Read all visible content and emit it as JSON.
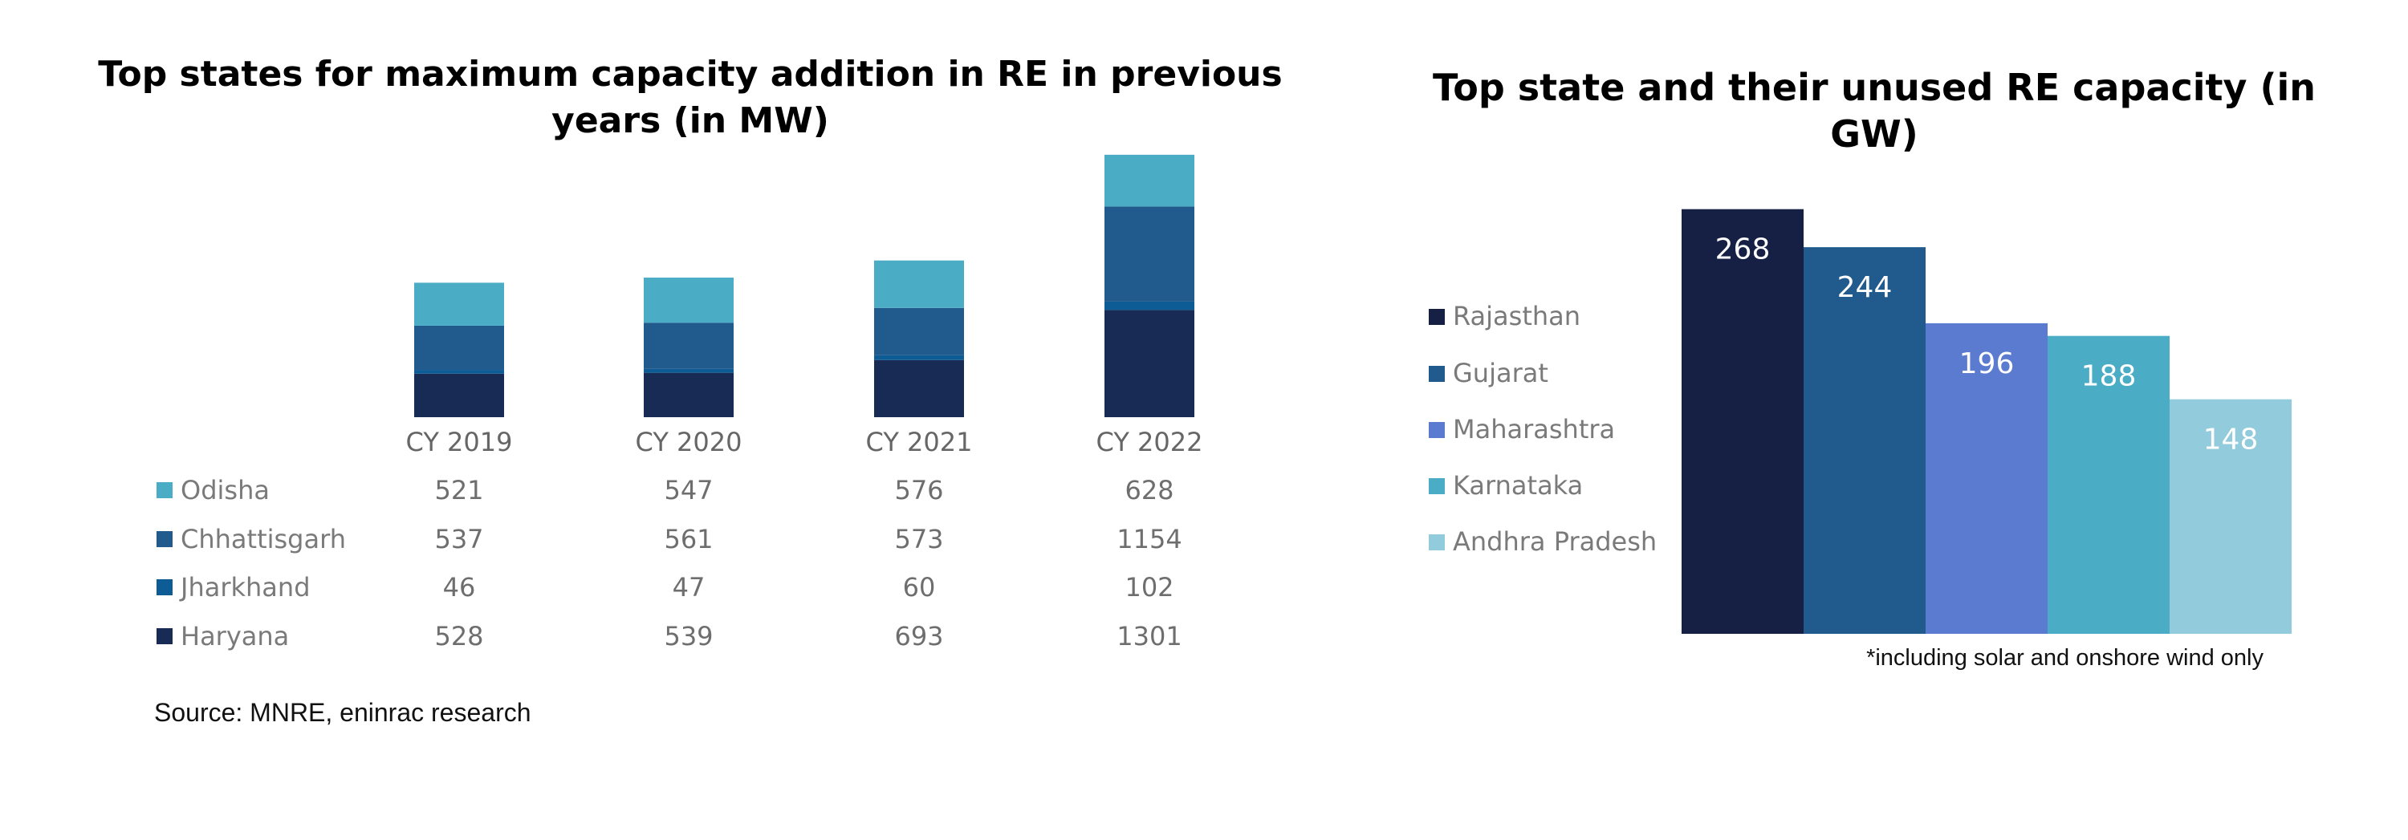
{
  "chart_data": [
    {
      "type": "bar",
      "stacked": true,
      "title": "Top states for maximum capacity addition in RE in previous years (in MW)",
      "categories": [
        "CY 2019",
        "CY 2020",
        "CY 2021",
        "CY 2022"
      ],
      "series": [
        {
          "name": "Odisha",
          "values": [
            521,
            547,
            576,
            628
          ],
          "color": "#4BACC6"
        },
        {
          "name": "Chhattisgarh",
          "values": [
            537,
            561,
            573,
            1154
          ],
          "color": "#215A8C"
        },
        {
          "name": "Jharkhand",
          "values": [
            46,
            47,
            60,
            102
          ],
          "color": "#0E5C96"
        },
        {
          "name": "Haryana",
          "values": [
            528,
            539,
            693,
            1301
          ],
          "color": "#172B55"
        }
      ],
      "data_table": true,
      "source": "Source: MNRE, eninrac research"
    },
    {
      "type": "bar",
      "title": "Top state and their unused RE capacity (in GW)",
      "categories": [
        "Rajasthan",
        "Gujarat",
        "Maharashtra",
        "Karnataka",
        "Andhra Pradesh"
      ],
      "values": [
        268,
        244,
        196,
        188,
        148
      ],
      "colors": [
        "#162045",
        "#215A8C",
        "#5B7BD1",
        "#4BACC6",
        "#91CBDC"
      ],
      "legend_position": "left",
      "note": "*including solar and onshore wind only"
    }
  ]
}
